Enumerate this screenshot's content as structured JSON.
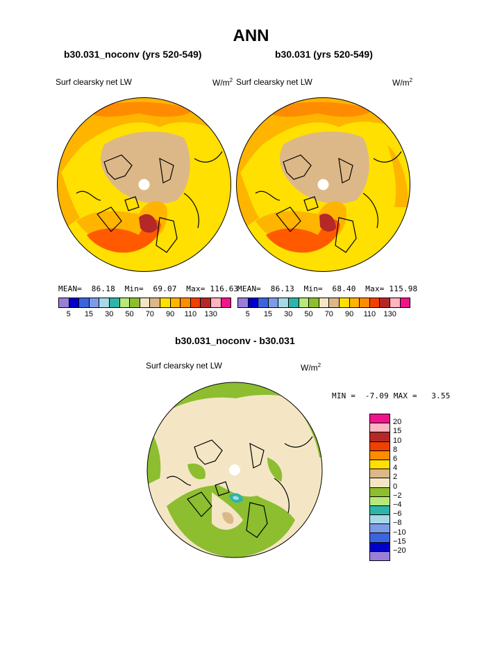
{
  "title": "ANN",
  "panels": [
    {
      "subtitle": "b30.031_noconv (yrs 520-549)",
      "field": "Surf clearsky net LW",
      "units": "W/m",
      "units_sup": "2",
      "stats": {
        "mean_label": "MEAN=",
        "mean": "86.18",
        "min_label": "Min=",
        "min": "69.07",
        "max_label": "Max=",
        "max": "116.63"
      }
    },
    {
      "subtitle": "b30.031 (yrs 520-549)",
      "field": "Surf clearsky net LW",
      "units": "W/m",
      "units_sup": "2",
      "stats": {
        "mean_label": "MEAN=",
        "mean": "86.13",
        "min_label": "Min=",
        "min": "68.40",
        "max_label": "Max=",
        "max": "115.98"
      }
    }
  ],
  "colorbar_top": {
    "colors": [
      "#9a7fd8",
      "#0000c8",
      "#3c64dc",
      "#7d9be6",
      "#a8d8e6",
      "#2eb4a8",
      "#b8e87a",
      "#8cbe30",
      "#f4e6c4",
      "#dcb888",
      "#ffe000",
      "#ffb400",
      "#ff8c00",
      "#f04000",
      "#b42828",
      "#ffb4c0",
      "#f0148c"
    ],
    "labels": [
      "5",
      "15",
      "30",
      "50",
      "70",
      "90",
      "110",
      "130"
    ]
  },
  "diff": {
    "subtitle": "b30.031_noconv - b30.031",
    "field": "Surf clearsky net LW",
    "units": "W/m",
    "units_sup": "2",
    "minmax": {
      "min_label": "MIN =",
      "min": "-7.09",
      "max_label": "MAX =",
      "max": "3.55"
    },
    "colorbar": {
      "colors": [
        "#f0148c",
        "#ffb4c0",
        "#b42828",
        "#f04000",
        "#ff8c00",
        "#ffe000",
        "#dcb888",
        "#f4e6c4",
        "#8cbe30",
        "#b8e87a",
        "#2eb4a8",
        "#a8d8e6",
        "#7d9be6",
        "#3c64dc",
        "#0000c8",
        "#9a7fd8"
      ],
      "labels": [
        "20",
        "15",
        "10",
        "8",
        "6",
        "4",
        "2",
        "0",
        "−2",
        "−4",
        "−6",
        "−8",
        "−10",
        "−15",
        "−20"
      ]
    }
  }
}
